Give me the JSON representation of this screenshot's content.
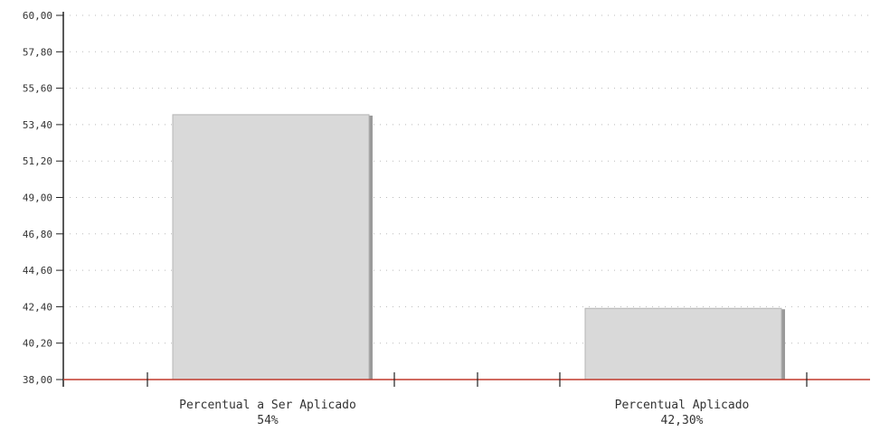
{
  "chart_data": {
    "type": "bar",
    "categories": [
      "Percentual a Ser Aplicado",
      "Percentual Aplicado"
    ],
    "values": [
      54,
      42.3
    ],
    "data_labels": [
      "54%",
      "42,30%"
    ],
    "yticks": [
      "38,00",
      "40,20",
      "42,40",
      "44,60",
      "46,80",
      "49,00",
      "51,20",
      "53,40",
      "55,60",
      "57,80",
      "60,00"
    ],
    "ylim": [
      38,
      60
    ],
    "grid": true,
    "title": "",
    "xlabel": "",
    "ylabel": "",
    "colors": {
      "bar": "#d9d9d9",
      "bar_shadow": "#9a9a9a",
      "axis": "#222222",
      "baseline": "#c0392b",
      "grid": "#bbbbbb"
    }
  }
}
